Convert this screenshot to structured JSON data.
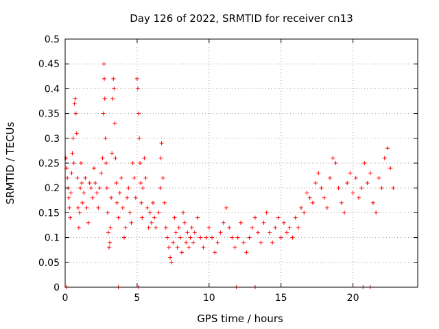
{
  "chart_data": {
    "type": "scatter",
    "title": "Day 126 of 2022, SRMTID for receiver cn13",
    "xlabel": "GPS time / hours",
    "ylabel": "SRMTID / TECUs",
    "xlim": [
      0,
      24.5
    ],
    "ylim": [
      0,
      0.5
    ],
    "xticks": [
      0,
      5,
      10,
      15,
      20
    ],
    "xtick_labels": [
      "0",
      "5",
      "10",
      "15",
      "20"
    ],
    "yticks": [
      0,
      0.05,
      0.1,
      0.15,
      0.2,
      0.25,
      0.3,
      0.35,
      0.4,
      0.45,
      0.5
    ],
    "ytick_labels": [
      "0",
      "0.05",
      "0.1",
      "0.15",
      "0.2",
      "0.25",
      "0.3",
      "0.35",
      "0.4",
      "0.45",
      "0.5"
    ],
    "grid": true,
    "marker": "plus",
    "color": "#ff0000",
    "series": [
      {
        "name": "SRMTID",
        "points": [
          [
            0.05,
            0.26
          ],
          [
            0.1,
            0.24
          ],
          [
            0.15,
            0.22
          ],
          [
            0.2,
            0.2
          ],
          [
            0.25,
            0.18
          ],
          [
            0.3,
            0.16
          ],
          [
            0.35,
            0.14
          ],
          [
            0.4,
            0.19
          ],
          [
            0.45,
            0.23
          ],
          [
            0.5,
            0.27
          ],
          [
            0.55,
            0.3
          ],
          [
            0.6,
            0.25
          ],
          [
            0.65,
            0.37
          ],
          [
            0.7,
            0.38
          ],
          [
            0.75,
            0.35
          ],
          [
            0.8,
            0.31
          ],
          [
            0.85,
            0.22
          ],
          [
            0.9,
            0.16
          ],
          [
            0.95,
            0.12
          ],
          [
            1.0,
            0.15
          ],
          [
            1.05,
            0.2
          ],
          [
            1.1,
            0.25
          ],
          [
            1.15,
            0.21
          ],
          [
            1.2,
            0.17
          ],
          [
            1.3,
            0.19
          ],
          [
            1.4,
            0.22
          ],
          [
            1.5,
            0.16
          ],
          [
            1.6,
            0.13
          ],
          [
            1.7,
            0.21
          ],
          [
            1.8,
            0.2
          ],
          [
            1.9,
            0.18
          ],
          [
            2.0,
            0.24
          ],
          [
            2.1,
            0.21
          ],
          [
            2.2,
            0.19
          ],
          [
            2.3,
            0.16
          ],
          [
            2.4,
            0.2
          ],
          [
            2.5,
            0.23
          ],
          [
            2.6,
            0.26
          ],
          [
            2.65,
            0.35
          ],
          [
            2.7,
            0.45
          ],
          [
            2.72,
            0.42
          ],
          [
            2.75,
            0.38
          ],
          [
            2.8,
            0.3
          ],
          [
            2.85,
            0.25
          ],
          [
            2.9,
            0.2
          ],
          [
            2.95,
            0.15
          ],
          [
            3.0,
            0.11
          ],
          [
            3.05,
            0.08
          ],
          [
            3.1,
            0.09
          ],
          [
            3.15,
            0.12
          ],
          [
            3.2,
            0.18
          ],
          [
            3.25,
            0.27
          ],
          [
            3.3,
            0.38
          ],
          [
            3.35,
            0.42
          ],
          [
            3.4,
            0.4
          ],
          [
            3.45,
            0.33
          ],
          [
            3.5,
            0.26
          ],
          [
            3.55,
            0.21
          ],
          [
            3.6,
            0.17
          ],
          [
            3.7,
            0.14
          ],
          [
            3.8,
            0.19
          ],
          [
            3.9,
            0.22
          ],
          [
            4.0,
            0.16
          ],
          [
            4.1,
            0.1
          ],
          [
            4.2,
            0.12
          ],
          [
            4.3,
            0.18
          ],
          [
            4.4,
            0.2
          ],
          [
            4.5,
            0.15
          ],
          [
            4.6,
            0.13
          ],
          [
            4.7,
            0.25
          ],
          [
            4.8,
            0.22
          ],
          [
            4.9,
            0.18
          ],
          [
            5.0,
            0.42
          ],
          [
            5.05,
            0.4
          ],
          [
            5.1,
            0.35
          ],
          [
            5.15,
            0.3
          ],
          [
            5.2,
            0.25
          ],
          [
            5.25,
            0.21
          ],
          [
            5.3,
            0.17
          ],
          [
            5.35,
            0.14
          ],
          [
            5.4,
            0.2
          ],
          [
            5.5,
            0.26
          ],
          [
            5.6,
            0.22
          ],
          [
            5.7,
            0.16
          ],
          [
            5.8,
            0.12
          ],
          [
            5.9,
            0.15
          ],
          [
            6.0,
            0.13
          ],
          [
            6.1,
            0.17
          ],
          [
            6.2,
            0.14
          ],
          [
            6.3,
            0.12
          ],
          [
            6.5,
            0.15
          ],
          [
            6.6,
            0.2
          ],
          [
            6.65,
            0.26
          ],
          [
            6.7,
            0.29
          ],
          [
            6.8,
            0.22
          ],
          [
            6.9,
            0.17
          ],
          [
            7.0,
            0.12
          ],
          [
            7.1,
            0.1
          ],
          [
            7.2,
            0.08
          ],
          [
            7.3,
            0.06
          ],
          [
            7.4,
            0.05
          ],
          [
            7.5,
            0.09
          ],
          [
            7.6,
            0.14
          ],
          [
            7.7,
            0.11
          ],
          [
            7.8,
            0.08
          ],
          [
            7.9,
            0.12
          ],
          [
            8.0,
            0.1
          ],
          [
            8.1,
            0.07
          ],
          [
            8.2,
            0.15
          ],
          [
            8.3,
            0.13
          ],
          [
            8.4,
            0.09
          ],
          [
            8.5,
            0.11
          ],
          [
            8.6,
            0.08
          ],
          [
            8.7,
            0.1
          ],
          [
            8.8,
            0.12
          ],
          [
            8.9,
            0.09
          ],
          [
            9.0,
            0.11
          ],
          [
            9.2,
            0.14
          ],
          [
            9.4,
            0.1
          ],
          [
            9.6,
            0.08
          ],
          [
            9.8,
            0.1
          ],
          [
            10.0,
            0.12
          ],
          [
            10.2,
            0.1
          ],
          [
            10.4,
            0.07
          ],
          [
            10.6,
            0.09
          ],
          [
            10.8,
            0.11
          ],
          [
            11.0,
            0.13
          ],
          [
            11.2,
            0.16
          ],
          [
            11.4,
            0.12
          ],
          [
            11.6,
            0.1
          ],
          [
            11.8,
            0.08
          ],
          [
            12.0,
            0.1
          ],
          [
            12.2,
            0.13
          ],
          [
            12.4,
            0.09
          ],
          [
            12.6,
            0.07
          ],
          [
            12.8,
            0.1
          ],
          [
            13.0,
            0.12
          ],
          [
            13.2,
            0.14
          ],
          [
            13.4,
            0.11
          ],
          [
            13.6,
            0.09
          ],
          [
            13.8,
            0.13
          ],
          [
            14.0,
            0.15
          ],
          [
            14.2,
            0.11
          ],
          [
            14.4,
            0.09
          ],
          [
            14.6,
            0.12
          ],
          [
            14.8,
            0.14
          ],
          [
            15.0,
            0.1
          ],
          [
            15.2,
            0.13
          ],
          [
            15.4,
            0.11
          ],
          [
            15.6,
            0.12
          ],
          [
            15.8,
            0.1
          ],
          [
            16.0,
            0.14
          ],
          [
            16.2,
            0.12
          ],
          [
            16.4,
            0.16
          ],
          [
            16.6,
            0.15
          ],
          [
            16.8,
            0.19
          ],
          [
            17.0,
            0.18
          ],
          [
            17.2,
            0.17
          ],
          [
            17.4,
            0.21
          ],
          [
            17.6,
            0.23
          ],
          [
            17.8,
            0.2
          ],
          [
            18.0,
            0.18
          ],
          [
            18.2,
            0.16
          ],
          [
            18.4,
            0.22
          ],
          [
            18.6,
            0.26
          ],
          [
            18.8,
            0.25
          ],
          [
            19.0,
            0.2
          ],
          [
            19.2,
            0.17
          ],
          [
            19.4,
            0.15
          ],
          [
            19.6,
            0.21
          ],
          [
            19.8,
            0.23
          ],
          [
            20.0,
            0.19
          ],
          [
            20.2,
            0.22
          ],
          [
            20.4,
            0.18
          ],
          [
            20.6,
            0.2
          ],
          [
            20.8,
            0.25
          ],
          [
            21.0,
            0.21
          ],
          [
            21.2,
            0.23
          ],
          [
            21.4,
            0.17
          ],
          [
            21.6,
            0.15
          ],
          [
            21.8,
            0.22
          ],
          [
            22.0,
            0.2
          ],
          [
            22.2,
            0.26
          ],
          [
            22.4,
            0.28
          ],
          [
            22.6,
            0.24
          ],
          [
            22.8,
            0.2
          ],
          [
            0.1,
            0.0
          ],
          [
            3.7,
            0.0
          ],
          [
            5.1,
            0.0
          ],
          [
            11.9,
            0.0
          ],
          [
            13.2,
            0.0
          ],
          [
            20.7,
            0.0
          ],
          [
            21.2,
            0.0
          ]
        ]
      }
    ]
  }
}
